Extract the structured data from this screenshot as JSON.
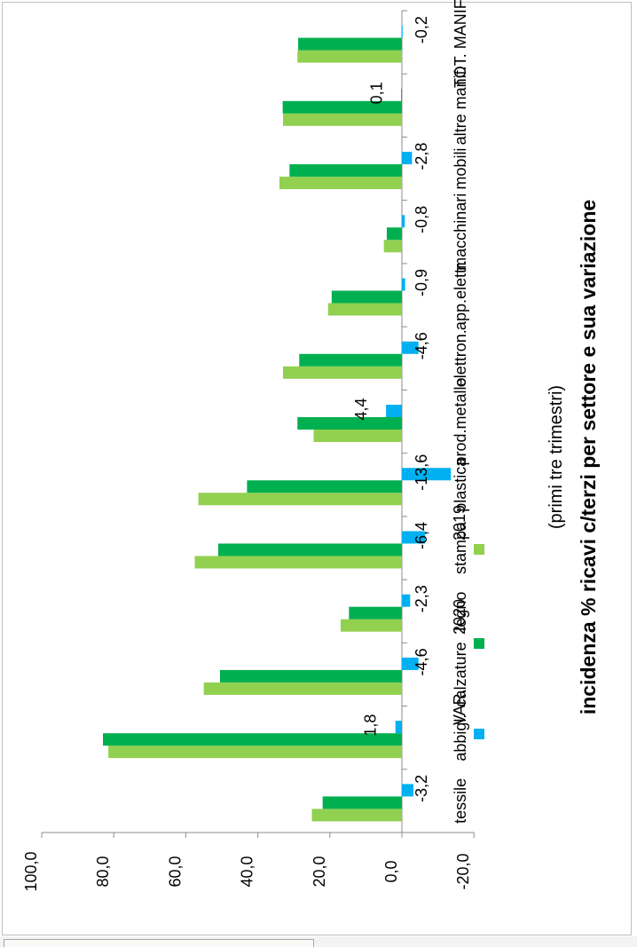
{
  "chart_data": {
    "type": "bar",
    "orientation": "rotated",
    "title": "incidenza % ricavi c/terzi per settore  e sua variazione",
    "subtitle": "(primi tre trimestri)",
    "categories": [
      "tessile",
      "abbigl.",
      "calzature",
      "legno",
      "stampa",
      "plastica",
      "prod.metallo",
      "elettron.",
      "app.elettr.",
      "macchinari",
      "mobili",
      "altre manif.",
      "TOT. MANIF."
    ],
    "series": [
      {
        "name": "2019",
        "color": "#92d050",
        "values": [
          25.0,
          81.5,
          55.0,
          17.0,
          57.5,
          56.5,
          24.5,
          33.0,
          20.5,
          5.0,
          34.0,
          33.0,
          29.0
        ]
      },
      {
        "name": "2020",
        "color": "#00b050",
        "values": [
          22.0,
          83.0,
          50.5,
          14.7,
          51.0,
          43.0,
          29.0,
          28.5,
          19.5,
          4.2,
          31.2,
          33.1,
          28.8
        ]
      },
      {
        "name": "VAR.",
        "color": "#00b0f0",
        "values": [
          -3.2,
          1.8,
          -4.6,
          -2.3,
          -6.4,
          -13.6,
          4.4,
          -4.6,
          -0.9,
          -0.8,
          -2.8,
          0.1,
          -0.2
        ]
      }
    ],
    "var_labels": [
      "-3,2",
      "1,8",
      "-4,6",
      "-2,3",
      "-6,4",
      "-13,6",
      "4,4",
      "-4,6",
      "-0,9",
      "-0,8",
      "-2,8",
      "0,1",
      "-0,2"
    ],
    "yticks": [
      100,
      80,
      60,
      40,
      20,
      0,
      -20
    ],
    "ytick_labels": [
      "100,0",
      "80,0",
      "60,0",
      "40,0",
      "20,0",
      "0,0",
      "-20,0"
    ],
    "ylim": [
      -20,
      100
    ],
    "legend_position": "top",
    "grid": false
  }
}
